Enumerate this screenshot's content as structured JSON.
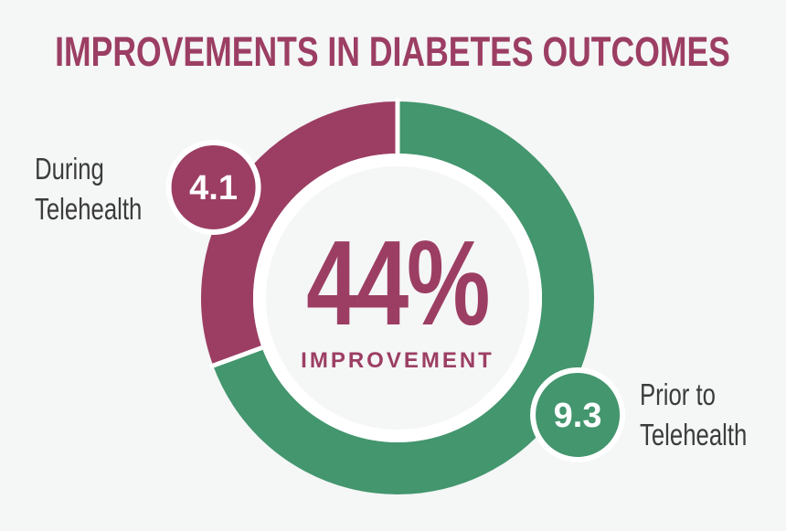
{
  "title": {
    "text": "IMPROVEMENTS IN DIABETES OUTCOMES"
  },
  "chart_data": {
    "type": "pie",
    "variant": "donut",
    "title": "Improvements in Diabetes Outcomes",
    "direction": "clockwise",
    "start_angle_deg": 0,
    "segments": [
      {
        "label": "Prior to Telehealth",
        "value": 9.3,
        "color": "#43966e"
      },
      {
        "label": "During Telehealth",
        "value": 4.1,
        "color": "#9c3e63"
      }
    ],
    "center_value": "44%",
    "center_label": "IMPROVEMENT",
    "legend_position": "outside-badges",
    "grid": false
  },
  "labels": {
    "during": {
      "lines": [
        "During",
        "Telehealth"
      ],
      "badge_value": "4.1"
    },
    "prior": {
      "lines": [
        "Prior to",
        "Telehealth"
      ],
      "badge_value": "9.3"
    }
  },
  "colors": {
    "maroon": "#9c3e63",
    "green": "#43966e",
    "background": "#f5f6f6",
    "label_text": "#3c3c3c",
    "badge_text": "#ffffff",
    "separator": "#ffffff"
  }
}
